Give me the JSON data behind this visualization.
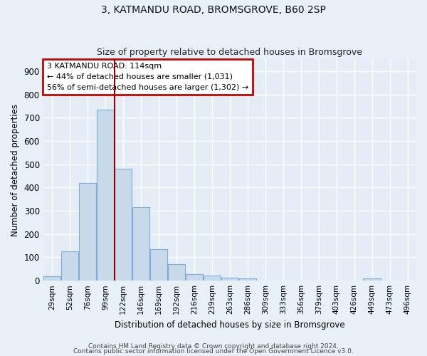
{
  "title": "3, KATMANDU ROAD, BROMSGROVE, B60 2SP",
  "subtitle": "Size of property relative to detached houses in Bromsgrove",
  "xlabel": "Distribution of detached houses by size in Bromsgrove",
  "ylabel": "Number of detached properties",
  "bar_color": "#c8d9ea",
  "bar_edge_color": "#7aace0",
  "background_color": "#e4edf5",
  "grid_color": "#ffffff",
  "fig_bg_color": "#e8f0f8",
  "categories": [
    "29sqm",
    "52sqm",
    "76sqm",
    "99sqm",
    "122sqm",
    "146sqm",
    "169sqm",
    "192sqm",
    "216sqm",
    "239sqm",
    "263sqm",
    "286sqm",
    "309sqm",
    "333sqm",
    "356sqm",
    "379sqm",
    "403sqm",
    "426sqm",
    "449sqm",
    "473sqm",
    "496sqm"
  ],
  "values": [
    20,
    125,
    420,
    735,
    480,
    315,
    135,
    70,
    28,
    22,
    12,
    10,
    0,
    0,
    0,
    0,
    0,
    0,
    10,
    0,
    0
  ],
  "red_line_x": 3.5,
  "annotation_line1": "3 KATMANDU ROAD: 114sqm",
  "annotation_line2": "← 44% of detached houses are smaller (1,031)",
  "annotation_line3": "56% of semi-detached houses are larger (1,302) →",
  "annotation_box_color": "#cc0000",
  "ylim": [
    0,
    950
  ],
  "yticks": [
    0,
    100,
    200,
    300,
    400,
    500,
    600,
    700,
    800,
    900
  ],
  "footer_line1": "Contains HM Land Registry data © Crown copyright and database right 2024.",
  "footer_line2": "Contains public sector information licensed under the Open Government Licence v3.0."
}
